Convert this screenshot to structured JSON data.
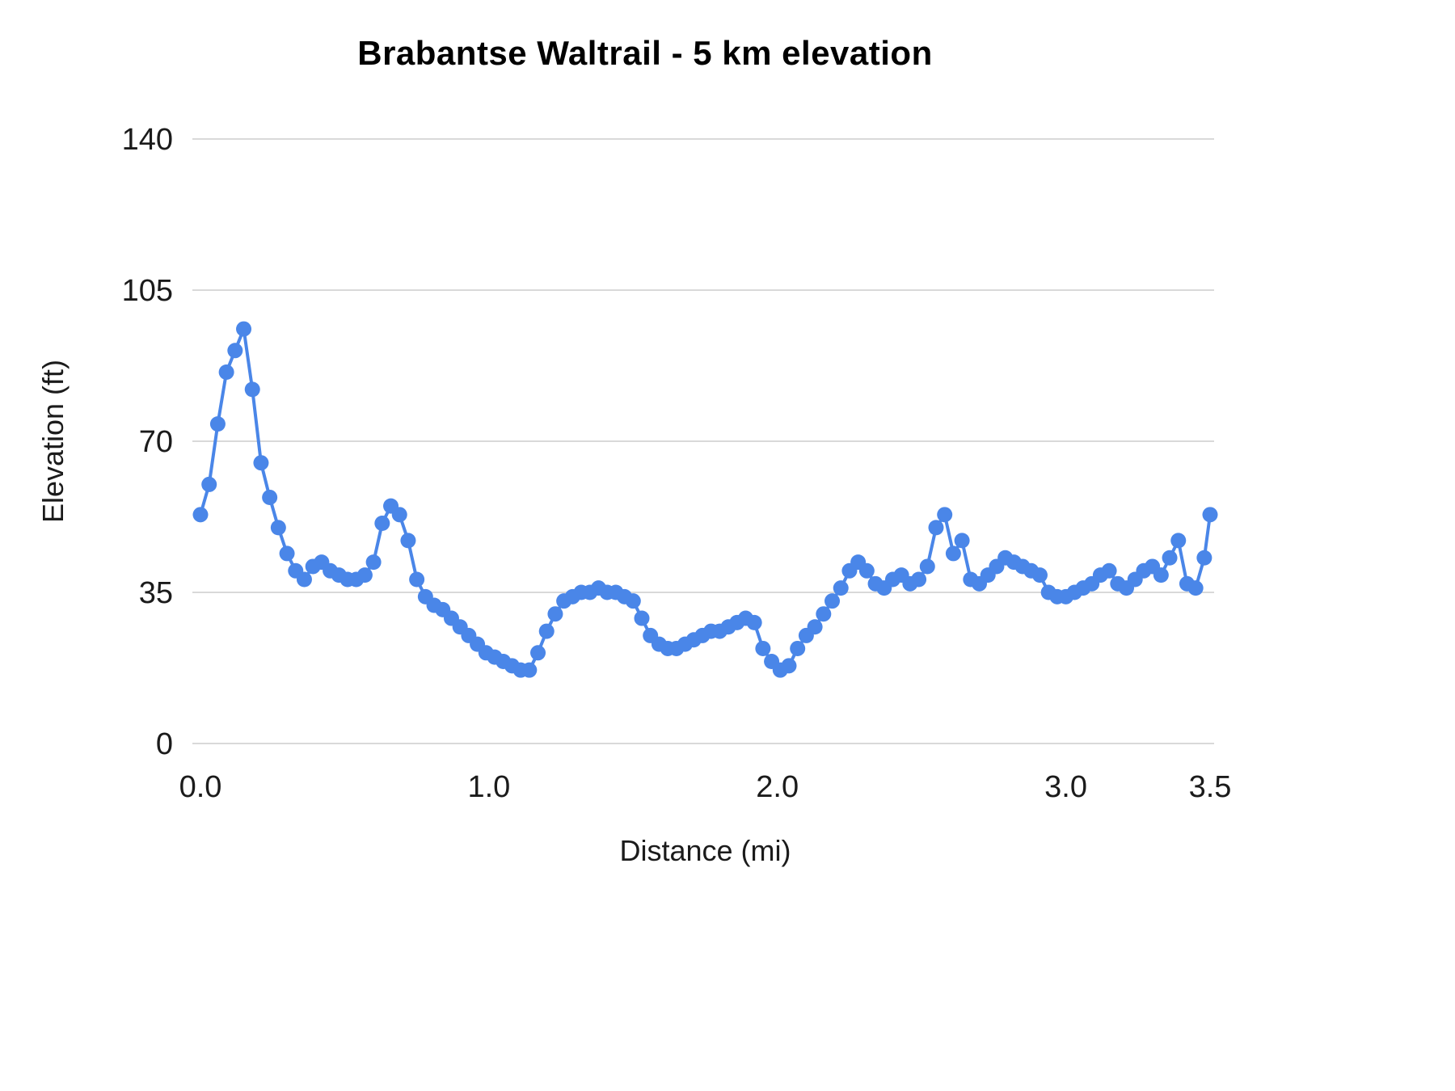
{
  "colors": {
    "line": "#4a86e8",
    "grid": "#d9d9d9",
    "text": "#1b1b1b",
    "title": "#000000",
    "background": "#ffffff"
  },
  "chart_data": {
    "type": "line",
    "title": "Brabantse Waltrail - 5 km elevation",
    "xlabel": "Distance (mi)",
    "ylabel": "Elevation (ft)",
    "xlim": [
      0,
      3.5
    ],
    "ylim": [
      0,
      140
    ],
    "x_ticks": [
      0.0,
      1.0,
      2.0,
      3.0,
      3.5
    ],
    "x_tick_labels": [
      "0.0",
      "1.0",
      "2.0",
      "3.0",
      "3.5"
    ],
    "y_ticks": [
      0,
      35,
      70,
      105,
      140
    ],
    "y_tick_labels": [
      "0",
      "35",
      "70",
      "105",
      "140"
    ],
    "grid": "horizontal",
    "legend": "none",
    "marker": "circle",
    "series": [
      {
        "name": "Elevation",
        "x": [
          0.0,
          0.03,
          0.06,
          0.09,
          0.12,
          0.15,
          0.18,
          0.21,
          0.24,
          0.27,
          0.3,
          0.33,
          0.36,
          0.39,
          0.42,
          0.45,
          0.48,
          0.51,
          0.54,
          0.57,
          0.6,
          0.63,
          0.66,
          0.69,
          0.72,
          0.75,
          0.78,
          0.81,
          0.84,
          0.87,
          0.9,
          0.93,
          0.96,
          0.99,
          1.02,
          1.05,
          1.08,
          1.11,
          1.14,
          1.17,
          1.2,
          1.23,
          1.26,
          1.29,
          1.32,
          1.35,
          1.38,
          1.41,
          1.44,
          1.47,
          1.5,
          1.53,
          1.56,
          1.59,
          1.62,
          1.65,
          1.68,
          1.71,
          1.74,
          1.77,
          1.8,
          1.83,
          1.86,
          1.89,
          1.92,
          1.95,
          1.98,
          2.01,
          2.04,
          2.07,
          2.1,
          2.13,
          2.16,
          2.19,
          2.22,
          2.25,
          2.28,
          2.31,
          2.34,
          2.37,
          2.4,
          2.43,
          2.46,
          2.49,
          2.52,
          2.55,
          2.58,
          2.61,
          2.64,
          2.67,
          2.7,
          2.73,
          2.76,
          2.79,
          2.82,
          2.85,
          2.88,
          2.91,
          2.94,
          2.97,
          3.0,
          3.03,
          3.06,
          3.09,
          3.12,
          3.15,
          3.18,
          3.21,
          3.24,
          3.27,
          3.3,
          3.33,
          3.36,
          3.39,
          3.42,
          3.45,
          3.48,
          3.5
        ],
        "y": [
          53,
          60,
          74,
          86,
          91,
          96,
          82,
          65,
          57,
          50,
          44,
          40,
          38,
          41,
          42,
          40,
          39,
          38,
          38,
          39,
          42,
          51,
          55,
          53,
          47,
          38,
          34,
          32,
          31,
          29,
          27,
          25,
          23,
          21,
          20,
          19,
          18,
          17,
          17,
          21,
          26,
          30,
          33,
          34,
          35,
          35,
          36,
          35,
          35,
          34,
          33,
          29,
          25,
          23,
          22,
          22,
          23,
          24,
          25,
          26,
          26,
          27,
          28,
          29,
          28,
          22,
          19,
          17,
          18,
          22,
          25,
          27,
          30,
          33,
          36,
          40,
          42,
          40,
          37,
          36,
          38,
          39,
          37,
          38,
          41,
          50,
          53,
          44,
          47,
          38,
          37,
          39,
          41,
          43,
          42,
          41,
          40,
          39,
          35,
          34,
          34,
          35,
          36,
          37,
          39,
          40,
          37,
          36,
          38,
          40,
          41,
          39,
          43,
          47,
          37,
          36,
          43,
          53
        ]
      }
    ]
  }
}
